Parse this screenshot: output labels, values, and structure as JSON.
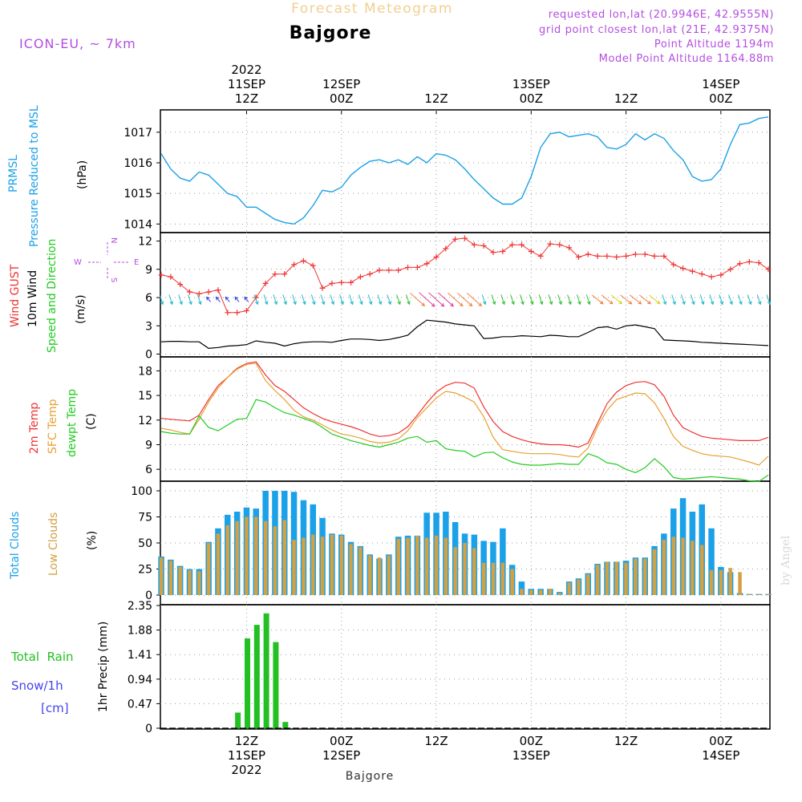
{
  "header": {
    "faint_title": "Forecast Meteogram",
    "location": "Bajgore",
    "model": "ICON-EU, ~ 7km",
    "requested": "requested lon,lat (20.9946E, 42.9555N)",
    "grid_point": "grid point closest lon,lat (21E, 42.9375N)",
    "point_alt": "Point Altitude 1194m",
    "model_alt": "Model Point Altitude 1164.88m",
    "footer": "Bajgore",
    "watermark": "by Angel"
  },
  "time_axis": {
    "hours_start": 0,
    "hours_end": 64,
    "top_ticks": [
      {
        "h": 9,
        "line1": "2022",
        "line2": "11SEP",
        "line3": "12Z"
      },
      {
        "h": 19,
        "line1": "",
        "line2": "12SEP",
        "line3": "00Z"
      },
      {
        "h": 29,
        "line1": "",
        "line2": "",
        "line3": "12Z"
      },
      {
        "h": 39,
        "line1": "",
        "line2": "13SEP",
        "line3": "00Z"
      },
      {
        "h": 49,
        "line1": "",
        "line2": "",
        "line3": "12Z"
      },
      {
        "h": 59,
        "line1": "",
        "line2": "14SEP",
        "line3": "00Z"
      }
    ],
    "bottom_ticks": [
      {
        "h": 9,
        "line1": "12Z",
        "line2": "11SEP",
        "line3": "2022"
      },
      {
        "h": 19,
        "line1": "00Z",
        "line2": "12SEP",
        "line3": ""
      },
      {
        "h": 29,
        "line1": "12Z",
        "line2": "",
        "line3": ""
      },
      {
        "h": 39,
        "line1": "00Z",
        "line2": "13SEP",
        "line3": ""
      },
      {
        "h": 49,
        "line1": "12Z",
        "line2": "",
        "line3": ""
      },
      {
        "h": 59,
        "line1": "00Z",
        "line2": "14SEP",
        "line3": ""
      }
    ]
  },
  "colors": {
    "pressure": "#1ba1e8",
    "gust": "#f03232",
    "wind": "#000000",
    "temp2m": "#f03232",
    "sfc": "#e8a030",
    "dew": "#20cc20",
    "total_clouds": "#1ba1e8",
    "low_clouds": "#d4a040",
    "rain": "#22c022",
    "snow": "#4444ee",
    "header_purple": "#b44ee0",
    "faint": "#f0d090"
  },
  "panels": {
    "pressure": {
      "label1": "PRMSL",
      "label2": "Pressure Reduced to MSL",
      "units": "(hPa)",
      "ticks": [
        "1014",
        "1015",
        "1016",
        "1017"
      ]
    },
    "wind": {
      "label_gust": "Wind GUST",
      "label_wind": "10m Wind",
      "label_dir": "Speed and Direction",
      "units": "(m/s)",
      "ticks": [
        "0",
        "3",
        "6",
        "9",
        "12"
      ],
      "compass": {
        "n": "N",
        "s": "S",
        "e": "E",
        "w": "W"
      }
    },
    "temp": {
      "label1": "2m Temp",
      "label2": "SFC Temp",
      "label3": "dewpt Temp",
      "units": "(C)",
      "ticks": [
        "6",
        "9",
        "12",
        "15",
        "18"
      ]
    },
    "clouds": {
      "label1": "Total Clouds",
      "label2": "Low Clouds",
      "units": "(%)",
      "ticks": [
        "0",
        "25",
        "50",
        "75",
        "100"
      ]
    },
    "precip": {
      "label_rain": "Total  Rain",
      "label_snow": "Snow/1h",
      "label_cm": "[cm]",
      "units": "1hr Precip (mm)",
      "ticks": [
        "0",
        "0.47",
        "0.94",
        "1.41",
        "1.88",
        "2.35"
      ]
    }
  },
  "chart_data": [
    {
      "type": "line",
      "title": "PRMSL Pressure Reduced to MSL",
      "ylabel": "(hPa)",
      "ylim": [
        1013.72,
        1017.73
      ],
      "x_hours": [
        0,
        1,
        2,
        3,
        4,
        5,
        6,
        7,
        8,
        9,
        10,
        11,
        12,
        13,
        14,
        15,
        16,
        17,
        18,
        19,
        20,
        21,
        22,
        23,
        24,
        25,
        26,
        27,
        28,
        29,
        30,
        31,
        32,
        33,
        34,
        35,
        36,
        37,
        38,
        39,
        40,
        41,
        42,
        43,
        44,
        45,
        46,
        47,
        48,
        49,
        50,
        51,
        52,
        53,
        54,
        55,
        56,
        57,
        58,
        59,
        60,
        61,
        62,
        63,
        64
      ],
      "series": [
        {
          "name": "PRMSL",
          "values": [
            1016.3,
            1015.8,
            1015.5,
            1015.4,
            1015.7,
            1015.6,
            1015.3,
            1015.0,
            1014.9,
            1014.55,
            1014.55,
            1014.35,
            1014.15,
            1014.05,
            1014.0,
            1014.2,
            1014.6,
            1015.1,
            1015.05,
            1015.2,
            1015.6,
            1015.85,
            1016.05,
            1016.1,
            1016.0,
            1016.1,
            1015.95,
            1016.2,
            1016.0,
            1016.3,
            1016.25,
            1016.1,
            1015.8,
            1015.45,
            1015.15,
            1014.85,
            1014.65,
            1014.65,
            1014.85,
            1015.55,
            1016.5,
            1016.95,
            1017.0,
            1016.85,
            1016.9,
            1016.95,
            1016.85,
            1016.5,
            1016.45,
            1016.6,
            1016.95,
            1016.75,
            1016.95,
            1016.8,
            1016.4,
            1016.1,
            1015.55,
            1015.4,
            1015.45,
            1015.8,
            1016.6,
            1017.25,
            1017.3,
            1017.45,
            1017.5
          ]
        }
      ]
    },
    {
      "type": "line",
      "title": "Wind GUST / 10m Wind Speed and Direction",
      "ylabel": "(m/s)",
      "ylim": [
        -0.3,
        12.9
      ],
      "x_hours": [
        0,
        1,
        2,
        3,
        4,
        5,
        6,
        7,
        8,
        9,
        10,
        11,
        12,
        13,
        14,
        15,
        16,
        17,
        18,
        19,
        20,
        21,
        22,
        23,
        24,
        25,
        26,
        27,
        28,
        29,
        30,
        31,
        32,
        33,
        34,
        35,
        36,
        37,
        38,
        39,
        40,
        41,
        42,
        43,
        44,
        45,
        46,
        47,
        48,
        49,
        50,
        51,
        52,
        53,
        54,
        55,
        56,
        57,
        58,
        59,
        60,
        61,
        62,
        63,
        64
      ],
      "series": [
        {
          "name": "Wind GUST",
          "values": [
            8.4,
            8.2,
            7.4,
            6.6,
            6.4,
            6.6,
            6.8,
            4.4,
            4.4,
            4.6,
            6.0,
            7.5,
            8.5,
            8.5,
            9.5,
            9.9,
            9.4,
            7.0,
            7.5,
            7.6,
            7.6,
            8.2,
            8.5,
            8.9,
            8.9,
            8.9,
            9.2,
            9.2,
            9.6,
            10.3,
            11.2,
            12.2,
            12.3,
            11.6,
            11.5,
            10.8,
            10.9,
            11.6,
            11.6,
            10.9,
            10.4,
            11.7,
            11.6,
            11.3,
            10.3,
            10.6,
            10.4,
            10.4,
            10.3,
            10.4,
            10.6,
            10.6,
            10.4,
            10.4,
            9.5,
            9.1,
            8.8,
            8.5,
            8.2,
            8.4,
            9.0,
            9.6,
            9.8,
            9.7,
            9.0
          ]
        },
        {
          "name": "10m Wind",
          "values": [
            1.3,
            1.35,
            1.35,
            1.3,
            1.3,
            0.6,
            0.7,
            0.85,
            0.9,
            1.0,
            1.4,
            1.25,
            1.15,
            0.85,
            1.1,
            1.25,
            1.3,
            1.3,
            1.25,
            1.45,
            1.6,
            1.6,
            1.55,
            1.45,
            1.55,
            1.75,
            2.0,
            2.9,
            3.6,
            3.5,
            3.4,
            3.2,
            3.1,
            3.0,
            1.65,
            1.7,
            1.85,
            1.85,
            1.95,
            1.9,
            1.85,
            2.0,
            1.95,
            1.85,
            1.85,
            2.3,
            2.8,
            2.9,
            2.65,
            3.0,
            3.1,
            2.9,
            2.7,
            1.5,
            1.45,
            1.4,
            1.35,
            1.25,
            1.2,
            1.15,
            1.1,
            1.05,
            1.0,
            0.95,
            0.9
          ]
        }
      ]
    },
    {
      "type": "line",
      "title": "2m Temp / SFC Temp / dewpt Temp",
      "ylabel": "(C)",
      "ylim": [
        4.55,
        19.7
      ],
      "x_hours": [
        0,
        1,
        2,
        3,
        4,
        5,
        6,
        7,
        8,
        9,
        10,
        11,
        12,
        13,
        14,
        15,
        16,
        17,
        18,
        19,
        20,
        21,
        22,
        23,
        24,
        25,
        26,
        27,
        28,
        29,
        30,
        31,
        32,
        33,
        34,
        35,
        36,
        37,
        38,
        39,
        40,
        41,
        42,
        43,
        44,
        45,
        46,
        47,
        48,
        49,
        50,
        51,
        52,
        53,
        54,
        55,
        56,
        57,
        58,
        59,
        60,
        61,
        62,
        63,
        64
      ],
      "series": [
        {
          "name": "2m Temp",
          "values": [
            12.2,
            12.1,
            12.0,
            11.9,
            12.6,
            14.5,
            16.2,
            17.2,
            18.3,
            18.9,
            19.1,
            17.5,
            16.2,
            15.5,
            14.5,
            13.5,
            12.8,
            12.2,
            11.8,
            11.5,
            11.2,
            10.8,
            10.3,
            10.0,
            10.1,
            10.4,
            11.2,
            12.6,
            14.1,
            15.4,
            16.2,
            16.6,
            16.5,
            15.9,
            13.6,
            11.8,
            10.6,
            10.0,
            9.6,
            9.3,
            9.1,
            9.0,
            9.0,
            8.9,
            8.7,
            9.2,
            11.6,
            14.0,
            15.4,
            16.2,
            16.6,
            16.7,
            16.3,
            14.9,
            12.6,
            11.1,
            10.5,
            10.0,
            9.8,
            9.7,
            9.6,
            9.5,
            9.5,
            9.5,
            9.9
          ]
        },
        {
          "name": "SFC Temp",
          "values": [
            11.0,
            10.8,
            10.5,
            10.3,
            12.1,
            14.2,
            15.9,
            17.2,
            18.2,
            18.8,
            18.9,
            16.8,
            15.6,
            14.5,
            13.2,
            12.4,
            12.0,
            11.4,
            10.8,
            10.3,
            10.1,
            9.8,
            9.4,
            9.2,
            9.3,
            9.7,
            10.7,
            12.3,
            13.5,
            14.7,
            15.5,
            15.3,
            14.8,
            14.2,
            12.4,
            9.9,
            8.4,
            8.2,
            8.0,
            7.9,
            7.9,
            7.9,
            7.8,
            7.6,
            7.5,
            8.6,
            11.2,
            13.2,
            14.5,
            14.9,
            15.3,
            15.2,
            14.1,
            12.2,
            10.0,
            8.8,
            8.3,
            7.9,
            7.7,
            7.6,
            7.5,
            7.2,
            6.9,
            6.5,
            7.6
          ]
        },
        {
          "name": "dewpt Temp",
          "values": [
            10.6,
            10.4,
            10.3,
            10.3,
            12.5,
            11.1,
            10.7,
            11.4,
            12.1,
            12.2,
            14.5,
            14.2,
            13.5,
            12.9,
            12.6,
            12.2,
            11.8,
            11.1,
            10.3,
            9.9,
            9.5,
            9.2,
            8.9,
            8.7,
            9.0,
            9.3,
            9.8,
            10.0,
            9.3,
            9.5,
            8.5,
            8.3,
            8.2,
            7.5,
            8.0,
            8.1,
            7.4,
            6.9,
            6.6,
            6.5,
            6.5,
            6.6,
            6.7,
            6.6,
            6.6,
            7.9,
            7.5,
            6.8,
            6.6,
            6.0,
            5.6,
            6.2,
            7.3,
            6.3,
            5.0,
            4.8,
            4.9,
            5.0,
            5.1,
            5.0,
            4.9,
            4.8,
            4.6,
            4.5,
            5.3
          ]
        }
      ]
    },
    {
      "type": "bar",
      "title": "Total Clouds / Low Clouds",
      "ylabel": "(%)",
      "ylim": [
        0,
        100
      ],
      "x_hours": [
        0,
        1,
        2,
        3,
        4,
        5,
        6,
        7,
        8,
        9,
        10,
        11,
        12,
        13,
        14,
        15,
        16,
        17,
        18,
        19,
        20,
        21,
        22,
        23,
        24,
        25,
        26,
        27,
        28,
        29,
        30,
        31,
        32,
        33,
        34,
        35,
        36,
        37,
        38,
        39,
        40,
        41,
        42,
        43,
        44,
        45,
        46,
        47,
        48,
        49,
        50,
        51,
        52,
        53,
        54,
        55,
        56,
        57,
        58,
        59,
        60,
        61,
        62,
        63,
        64
      ],
      "series": [
        {
          "name": "Total Clouds",
          "values": [
            37,
            34,
            28,
            25,
            25,
            51,
            64,
            77,
            80,
            84,
            83,
            100,
            100,
            100,
            99,
            91,
            87,
            74,
            59,
            58,
            51,
            47,
            39,
            35,
            39,
            56,
            57,
            57,
            79,
            79,
            80,
            70,
            59,
            58,
            52,
            51,
            64,
            29,
            13,
            6,
            6,
            6,
            3,
            13,
            16,
            21,
            30,
            32,
            32,
            33,
            36,
            36,
            47,
            59,
            83,
            93,
            80,
            87,
            64,
            27,
            22,
            2,
            1,
            1,
            1
          ]
        },
        {
          "name": "Low Clouds",
          "values": [
            36,
            33,
            27,
            24,
            23,
            50,
            59,
            67,
            71,
            75,
            75,
            71,
            66,
            72,
            53,
            55,
            58,
            56,
            58,
            57,
            49,
            46,
            38,
            36,
            38,
            54,
            55,
            57,
            55,
            57,
            55,
            46,
            50,
            45,
            31,
            31,
            31,
            25,
            6,
            5,
            5,
            6,
            2,
            12,
            15,
            20,
            29,
            32,
            32,
            31,
            35,
            35,
            44,
            53,
            56,
            55,
            52,
            48,
            24,
            24,
            26,
            22,
            1,
            1,
            1
          ]
        }
      ]
    },
    {
      "type": "bar",
      "title": "Total Rain / Snow/1h",
      "ylabel": "1hr Precip (mm)",
      "ylim": [
        0,
        2.35
      ],
      "x_hours": [
        8,
        9,
        10,
        11,
        12,
        13
      ],
      "series": [
        {
          "name": "Total Rain",
          "values": [
            0.3,
            1.72,
            1.98,
            2.2,
            1.65,
            0.12
          ]
        }
      ]
    }
  ]
}
